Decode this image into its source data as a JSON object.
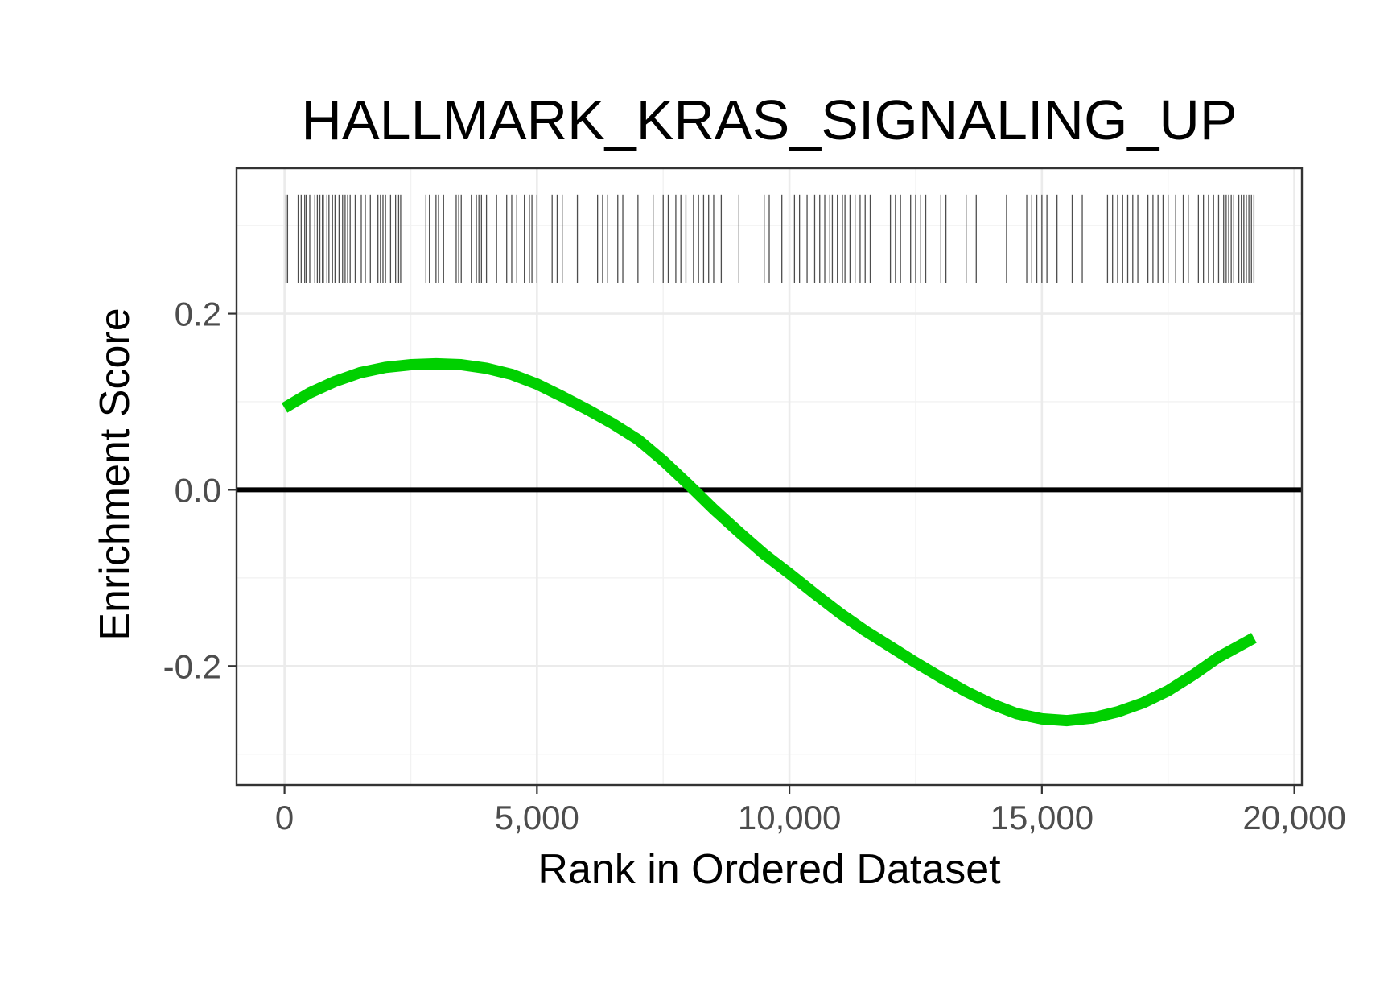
{
  "chart_data": {
    "type": "line",
    "title": "HALLMARK_KRAS_SIGNALING_UP",
    "xlabel": "Rank in Ordered Dataset",
    "ylabel": "Enrichment Score",
    "xlim": [
      -950,
      20150
    ],
    "ylim": [
      -0.335,
      0.365
    ],
    "x_ticks": [
      {
        "value": 0,
        "label": "0"
      },
      {
        "value": 5000,
        "label": "5,000"
      },
      {
        "value": 10000,
        "label": "10,000"
      },
      {
        "value": 15000,
        "label": "15,000"
      },
      {
        "value": 20000,
        "label": "20,000"
      }
    ],
    "y_ticks": [
      {
        "value": -0.2,
        "label": "-0.2"
      },
      {
        "value": 0.0,
        "label": "0.0"
      },
      {
        "value": 0.2,
        "label": "0.2"
      }
    ],
    "x_minor": [
      2500,
      7500,
      12500,
      17500
    ],
    "y_minor": [
      -0.3,
      -0.1,
      0.1,
      0.3
    ],
    "grid": true,
    "reference_line_y": 0,
    "curve_color": "#00d000",
    "series": [
      {
        "x": [
          0,
          500,
          1000,
          1500,
          2000,
          2500,
          3000,
          3500,
          4000,
          4500,
          5000,
          5500,
          6000,
          6500,
          7000,
          7500,
          8000,
          8500,
          9000,
          9500,
          10000,
          10500,
          11000,
          11500,
          12000,
          12500,
          13000,
          13500,
          14000,
          14500,
          15000,
          15500,
          16000,
          16500,
          17000,
          17500,
          18000,
          18500,
          19200
        ],
        "y": [
          0.093,
          0.11,
          0.123,
          0.133,
          0.139,
          0.142,
          0.143,
          0.142,
          0.138,
          0.131,
          0.12,
          0.106,
          0.091,
          0.075,
          0.057,
          0.033,
          0.006,
          -0.022,
          -0.048,
          -0.073,
          -0.095,
          -0.118,
          -0.14,
          -0.16,
          -0.178,
          -0.196,
          -0.213,
          -0.229,
          -0.243,
          -0.254,
          -0.26,
          -0.262,
          -0.259,
          -0.252,
          -0.242,
          -0.228,
          -0.21,
          -0.19,
          -0.168
        ]
      }
    ],
    "gene_hits_band": [
      0.235,
      0.335
    ],
    "gene_hits": [
      30,
      60,
      270,
      330,
      400,
      430,
      500,
      600,
      650,
      700,
      750,
      770,
      840,
      880,
      950,
      1000,
      1080,
      1150,
      1200,
      1250,
      1300,
      1400,
      1520,
      1600,
      1700,
      1850,
      1900,
      1950,
      2000,
      2100,
      2200,
      2260,
      2300,
      2800,
      2870,
      3000,
      3050,
      3150,
      3400,
      3450,
      3500,
      3700,
      3800,
      3850,
      3900,
      4000,
      4200,
      4400,
      4500,
      4600,
      4750,
      4850,
      4900,
      5000,
      5300,
      5400,
      5500,
      5800,
      6200,
      6300,
      6400,
      6600,
      6700,
      7000,
      7300,
      7500,
      7600,
      7750,
      7850,
      7950,
      8100,
      8200,
      8300,
      8400,
      8500,
      8650,
      9000,
      9500,
      9600,
      9850,
      10100,
      10200,
      10350,
      10500,
      10600,
      10700,
      10800,
      10850,
      10950,
      11050,
      11100,
      11200,
      11300,
      11400,
      11500,
      11600,
      12000,
      12100,
      12200,
      12400,
      12500,
      12600,
      12700,
      13000,
      13100,
      13500,
      13700,
      14300,
      14700,
      14800,
      14900,
      15000,
      15100,
      15300,
      15600,
      15800,
      16300,
      16400,
      16500,
      16600,
      16700,
      16800,
      16900,
      17100,
      17200,
      17300,
      17400,
      17500,
      17650,
      17800,
      17900,
      18100,
      18200,
      18300,
      18400,
      18500,
      18600,
      18650,
      18700,
      18750,
      18800,
      18900,
      18950,
      19000,
      19050,
      19100,
      19150,
      19200
    ]
  }
}
